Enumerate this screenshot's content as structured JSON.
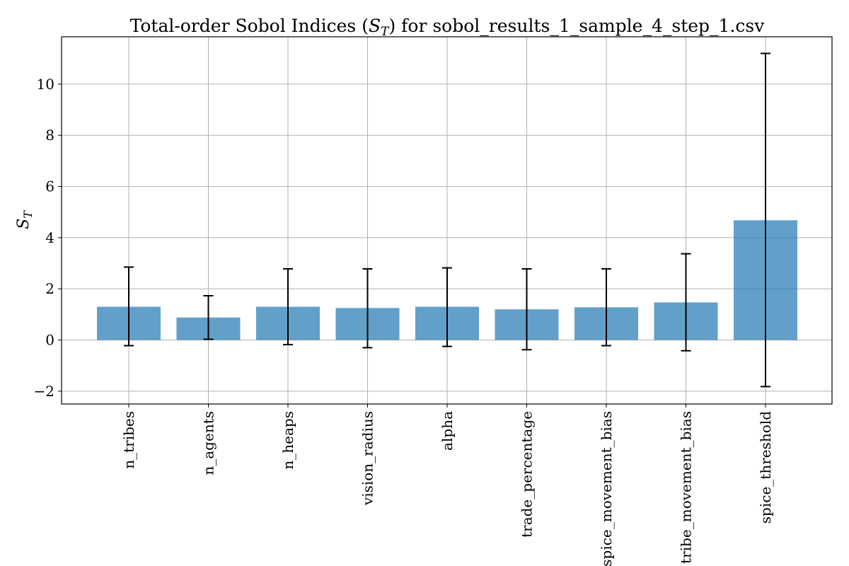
{
  "chart_data": {
    "type": "bar",
    "title": "Total-order Sobol Indices (S_T) for sobol_results_1_sample_4_step_1.csv",
    "title_parts": {
      "prefix": "Total-order Sobol Indices (",
      "symbol": "S",
      "subscript": "T",
      "suffix": ") for sobol_results_1_sample_4_step_1.csv"
    },
    "xlabel": "",
    "ylabel": "S_T",
    "ylabel_parts": {
      "symbol": "S",
      "subscript": "T"
    },
    "categories": [
      "n_tribes",
      "n_agents",
      "n_heaps",
      "vision_radius",
      "alpha",
      "trade_percentage",
      "spice_movement_bias",
      "tribe_movement_bias",
      "spice_threshold"
    ],
    "values": [
      1.3,
      0.88,
      1.3,
      1.25,
      1.3,
      1.2,
      1.28,
      1.47,
      4.68
    ],
    "error_low": [
      -0.22,
      0.03,
      -0.18,
      -0.3,
      -0.25,
      -0.38,
      -0.22,
      -0.42,
      -1.82
    ],
    "error_high": [
      2.85,
      1.73,
      2.78,
      2.78,
      2.82,
      2.78,
      2.78,
      3.37,
      11.2
    ],
    "ylim": [
      -2.5,
      11.85
    ],
    "yticks": [
      -2,
      0,
      2,
      4,
      6,
      8,
      10
    ],
    "ytick_labels": [
      "−2",
      "0",
      "2",
      "4",
      "6",
      "8",
      "10"
    ],
    "grid": true,
    "bar_color": "#1f77b4",
    "error_color": "#000000"
  }
}
